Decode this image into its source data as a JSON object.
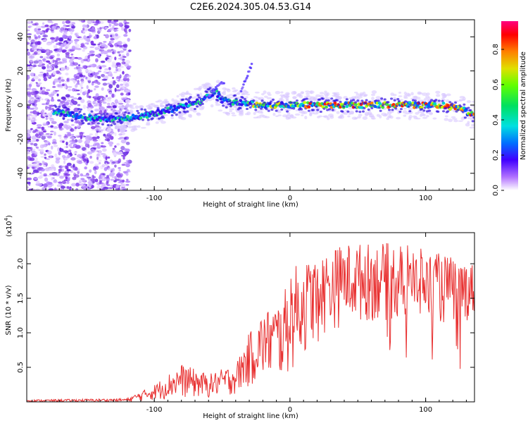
{
  "page_title": "C2E6.2024.305.04.53.G14",
  "chart_data": [
    {
      "type": "heatmap",
      "title": "C2E6.2024.305.04.53.G14",
      "xlabel": "Height of straight line (km)",
      "ylabel": "Frequency (Hz)",
      "xlim": [
        -194,
        136
      ],
      "ylim": [
        -50,
        50
      ],
      "x_ticks": [
        -100,
        0,
        100
      ],
      "y_ticks": [
        -40,
        -20,
        0,
        20,
        40
      ],
      "colorbar": {
        "label": "Normalized spectral amplitude",
        "range": [
          0,
          0.96
        ],
        "ticks": [
          0.0,
          0.2,
          0.4,
          0.6,
          0.8
        ],
        "tick_labels": [
          "0.0",
          "0.2",
          "0.4",
          "0.6",
          "0.8"
        ],
        "colors": [
          "#ffffff",
          "#a000ff",
          "#3000ff",
          "#0070ff",
          "#00e0e0",
          "#00e060",
          "#60ff00",
          "#e0e000",
          "#ff8000",
          "#ff0000",
          "#ff0080"
        ]
      },
      "ridge": [
        {
          "x": -174,
          "y": -4
        },
        {
          "x": -140,
          "y": -8
        },
        {
          "x": -120,
          "y": -8
        },
        {
          "x": -100,
          "y": -5
        },
        {
          "x": -80,
          "y": -1
        },
        {
          "x": -65,
          "y": 3
        },
        {
          "x": -55,
          "y": 8
        },
        {
          "x": -50,
          "y": 3
        },
        {
          "x": -35,
          "y": 1
        },
        {
          "x": -20,
          "y": 0
        },
        {
          "x": 0,
          "y": 0
        },
        {
          "x": 40,
          "y": 0
        },
        {
          "x": 80,
          "y": 0
        },
        {
          "x": 110,
          "y": 0
        },
        {
          "x": 125,
          "y": -2
        },
        {
          "x": 136,
          "y": -6
        }
      ]
    },
    {
      "type": "line",
      "xlabel": "Height of straight line (km)",
      "ylabel": "SNR (10 * v/v)",
      "y_multiplier": "(x10",
      "y_multiplier_exp": "4",
      "xlim": [
        -194,
        136
      ],
      "ylim": [
        0,
        2.45
      ],
      "x_ticks": [
        -100,
        0,
        100
      ],
      "y_ticks": [
        0.5,
        1.0,
        1.5,
        2.0
      ],
      "y_tick_labels": [
        "0.5",
        "1.0",
        "1.5",
        "2.0"
      ],
      "color": "#e83030",
      "envelope": [
        {
          "x": -194,
          "low": 0.0,
          "high": 0.03
        },
        {
          "x": -120,
          "low": 0.0,
          "high": 0.05
        },
        {
          "x": -100,
          "low": 0.02,
          "high": 0.25
        },
        {
          "x": -80,
          "low": 0.05,
          "high": 0.55
        },
        {
          "x": -60,
          "low": 0.05,
          "high": 0.4
        },
        {
          "x": -40,
          "low": 0.1,
          "high": 0.55
        },
        {
          "x": -30,
          "low": 0.2,
          "high": 1.0
        },
        {
          "x": -20,
          "low": 0.3,
          "high": 1.3
        },
        {
          "x": -5,
          "low": 0.3,
          "high": 1.5
        },
        {
          "x": 0,
          "low": 0.4,
          "high": 1.95
        },
        {
          "x": 20,
          "low": 0.9,
          "high": 2.1
        },
        {
          "x": 40,
          "low": 1.1,
          "high": 2.3
        },
        {
          "x": 60,
          "low": 1.15,
          "high": 2.3
        },
        {
          "x": 80,
          "low": 1.15,
          "high": 2.3
        },
        {
          "x": 100,
          "low": 1.1,
          "high": 2.2
        },
        {
          "x": 120,
          "low": 1.1,
          "high": 2.1
        },
        {
          "x": 136,
          "low": 1.2,
          "high": 2.0
        }
      ]
    }
  ]
}
